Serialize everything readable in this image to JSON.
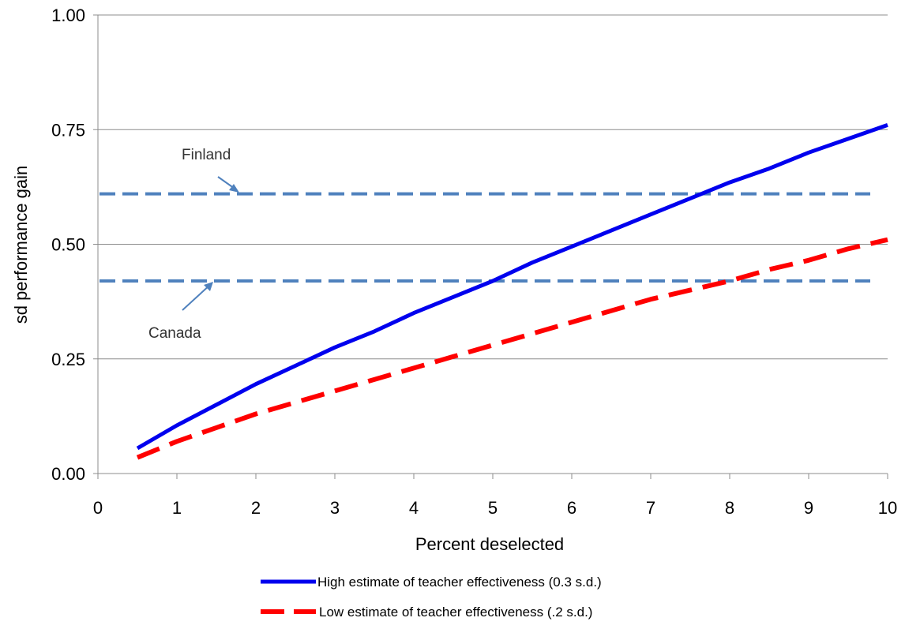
{
  "chart_data": {
    "type": "line",
    "title": "",
    "xlabel": "Percent deselected",
    "ylabel": "sd performance gain",
    "xlim": [
      0,
      10
    ],
    "ylim": [
      0,
      1
    ],
    "x_ticks": [
      "0",
      "1",
      "2",
      "3",
      "4",
      "5",
      "6",
      "7",
      "8",
      "9",
      "10"
    ],
    "y_ticks": [
      "0.00",
      "0.25",
      "0.50",
      "0.75",
      "1.00"
    ],
    "grid": "horizontal",
    "legend_position": "bottom",
    "series": [
      {
        "name": "High estimate of teacher effectiveness (0.3 s.d.)",
        "style": "solid",
        "color": "#0000ee",
        "x": [
          0.5,
          1,
          1.5,
          2,
          2.5,
          3,
          3.5,
          4,
          4.5,
          5,
          5.5,
          6,
          6.5,
          7,
          7.5,
          8,
          8.5,
          9,
          9.5,
          10
        ],
        "y": [
          0.055,
          0.105,
          0.15,
          0.195,
          0.235,
          0.275,
          0.31,
          0.35,
          0.385,
          0.42,
          0.46,
          0.495,
          0.53,
          0.565,
          0.6,
          0.635,
          0.665,
          0.7,
          0.73,
          0.76
        ]
      },
      {
        "name": "Low estimate of teacher effectiveness (.2 s.d.)",
        "style": "dashed",
        "color": "#ff0000",
        "x": [
          0.5,
          1,
          1.5,
          2,
          2.5,
          3,
          3.5,
          4,
          4.5,
          5,
          5.5,
          6,
          6.5,
          7,
          7.5,
          8,
          8.5,
          9,
          9.5,
          10
        ],
        "y": [
          0.035,
          0.07,
          0.1,
          0.13,
          0.155,
          0.18,
          0.205,
          0.23,
          0.255,
          0.28,
          0.305,
          0.33,
          0.355,
          0.38,
          0.4,
          0.42,
          0.445,
          0.465,
          0.49,
          0.51
        ]
      }
    ],
    "reference_lines": [
      {
        "label": "Finland",
        "y": 0.61,
        "color": "#4f81bd"
      },
      {
        "label": "Canada",
        "y": 0.42,
        "color": "#4f81bd"
      }
    ]
  }
}
